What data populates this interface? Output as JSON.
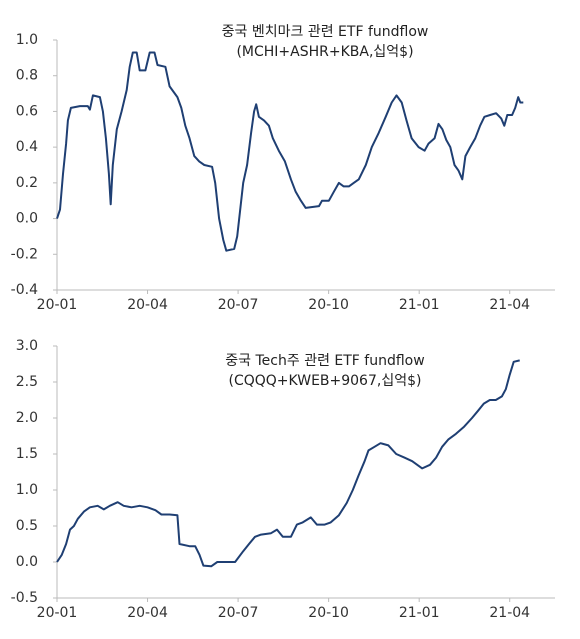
{
  "chart_data": [
    {
      "type": "line",
      "title": "중국 벤치마크 관련 ETF fundflow",
      "subtitle": "(MCHI+ASHR+KBA,십억$)",
      "xlim": [
        0,
        16.5
      ],
      "xticks": [
        {
          "value": 0,
          "label": "20-01"
        },
        {
          "value": 3,
          "label": "20-04"
        },
        {
          "value": 6,
          "label": "20-07"
        },
        {
          "value": 9,
          "label": "20-10"
        },
        {
          "value": 12,
          "label": "21-01"
        },
        {
          "value": 15,
          "label": "21-04"
        }
      ],
      "ylim": [
        -0.4,
        1.0
      ],
      "yticks": [
        {
          "value": 1.0,
          "label": "1.0"
        },
        0.8,
        0.6,
        0.4,
        0.2,
        {
          "value": 0,
          "label": "0.0"
        },
        -0.2,
        -0.4
      ],
      "series": [
        {
          "color": "#1f3f73",
          "x": [
            0,
            0.1,
            0.2,
            0.3,
            0.36,
            0.46,
            0.76,
            1.02,
            1.09,
            1.19,
            1.42,
            1.52,
            1.62,
            1.72,
            1.78,
            1.85,
            1.98,
            2.14,
            2.31,
            2.41,
            2.51,
            2.64,
            2.74,
            2.93,
            3.07,
            3.23,
            3.33,
            3.59,
            3.73,
            3.99,
            4.12,
            4.25,
            4.39,
            4.55,
            4.71,
            4.88,
            5.14,
            5.24,
            5.37,
            5.51,
            5.61,
            5.87,
            5.97,
            6.07,
            6.17,
            6.3,
            6.43,
            6.53,
            6.6,
            6.69,
            6.86,
            7.02,
            7.15,
            7.35,
            7.55,
            7.75,
            7.91,
            8.08,
            8.24,
            8.68,
            8.78,
            9.01,
            9.17,
            9.34,
            9.5,
            9.67,
            9.83,
            10.0,
            10.23,
            10.43,
            10.66,
            10.89,
            11.09,
            11.25,
            11.42,
            11.58,
            11.75,
            11.98,
            12.18,
            12.31,
            12.51,
            12.64,
            12.77,
            12.9,
            13.03,
            13.17,
            13.3,
            13.43,
            13.53,
            13.69,
            13.86,
            14.02,
            14.16,
            14.35,
            14.55,
            14.72,
            14.82,
            14.92,
            15.08,
            15.18,
            15.28,
            15.35,
            15.45
          ],
          "values": [
            0.0,
            0.05,
            0.25,
            0.42,
            0.55,
            0.62,
            0.63,
            0.63,
            0.61,
            0.69,
            0.68,
            0.6,
            0.45,
            0.25,
            0.08,
            0.3,
            0.5,
            0.6,
            0.72,
            0.85,
            0.93,
            0.93,
            0.83,
            0.83,
            0.93,
            0.93,
            0.86,
            0.85,
            0.74,
            0.68,
            0.62,
            0.52,
            0.45,
            0.35,
            0.32,
            0.3,
            0.29,
            0.2,
            0.0,
            -0.12,
            -0.18,
            -0.17,
            -0.1,
            0.05,
            0.2,
            0.3,
            0.48,
            0.6,
            0.64,
            0.57,
            0.55,
            0.52,
            0.45,
            0.38,
            0.32,
            0.22,
            0.15,
            0.1,
            0.06,
            0.07,
            0.1,
            0.1,
            0.15,
            0.2,
            0.18,
            0.18,
            0.2,
            0.22,
            0.3,
            0.4,
            0.48,
            0.57,
            0.65,
            0.69,
            0.65,
            0.55,
            0.45,
            0.4,
            0.38,
            0.42,
            0.45,
            0.53,
            0.5,
            0.44,
            0.4,
            0.3,
            0.27,
            0.22,
            0.35,
            0.4,
            0.45,
            0.52,
            0.57,
            0.58,
            0.59,
            0.56,
            0.52,
            0.58,
            0.58,
            0.62,
            0.68,
            0.65,
            0.65
          ]
        }
      ]
    },
    {
      "type": "line",
      "title": "중국 Tech주 관련 ETF fundflow",
      "subtitle": "(CQQQ+KWEB+9067,십억$)",
      "xlim": [
        0,
        16.5
      ],
      "xticks": [
        {
          "value": 0,
          "label": "20-01"
        },
        {
          "value": 3,
          "label": "20-04"
        },
        {
          "value": 6,
          "label": "20-07"
        },
        {
          "value": 9,
          "label": "20-10"
        },
        {
          "value": 12,
          "label": "21-01"
        },
        {
          "value": 15,
          "label": "21-04"
        }
      ],
      "ylim": [
        -0.5,
        3.0
      ],
      "yticks": [
        {
          "value": 3.0,
          "label": "3.0"
        },
        2.5,
        {
          "value": 2.0,
          "label": "2.0"
        },
        1.5,
        {
          "value": 1.0,
          "label": "1.0"
        },
        0.5,
        {
          "value": 0,
          "label": "0.0"
        },
        -0.5
      ],
      "series": [
        {
          "color": "#1f3f73",
          "x": [
            0,
            0.16,
            0.3,
            0.43,
            0.56,
            0.69,
            0.89,
            1.09,
            1.35,
            1.55,
            1.75,
            2.01,
            2.21,
            2.47,
            2.74,
            3.0,
            3.26,
            3.46,
            3.73,
            3.99,
            4.06,
            4.39,
            4.58,
            4.72,
            4.85,
            5.11,
            5.31,
            5.57,
            5.9,
            6.17,
            6.36,
            6.56,
            6.76,
            7.09,
            7.29,
            7.48,
            7.75,
            7.95,
            8.14,
            8.41,
            8.61,
            8.87,
            9.07,
            9.34,
            9.6,
            9.8,
            9.99,
            10.19,
            10.32,
            10.52,
            10.72,
            10.98,
            11.24,
            11.51,
            11.77,
            12.1,
            12.36,
            12.56,
            12.76,
            12.96,
            13.22,
            13.49,
            13.75,
            13.95,
            14.14,
            14.34,
            14.54,
            14.74,
            14.87,
            15.0,
            15.13,
            15.33
          ],
          "values": [
            0.0,
            0.1,
            0.25,
            0.45,
            0.5,
            0.6,
            0.7,
            0.76,
            0.78,
            0.73,
            0.78,
            0.83,
            0.78,
            0.76,
            0.78,
            0.76,
            0.72,
            0.66,
            0.66,
            0.65,
            0.25,
            0.22,
            0.22,
            0.1,
            -0.05,
            -0.06,
            0.0,
            0.0,
            0.0,
            0.15,
            0.25,
            0.35,
            0.38,
            0.4,
            0.45,
            0.35,
            0.35,
            0.52,
            0.55,
            0.62,
            0.52,
            0.52,
            0.55,
            0.65,
            0.82,
            1.0,
            1.2,
            1.4,
            1.55,
            1.6,
            1.65,
            1.62,
            1.5,
            1.45,
            1.4,
            1.3,
            1.35,
            1.45,
            1.6,
            1.7,
            1.78,
            1.88,
            2.0,
            2.1,
            2.2,
            2.25,
            2.25,
            2.3,
            2.4,
            2.6,
            2.78,
            2.8
          ]
        }
      ]
    }
  ]
}
